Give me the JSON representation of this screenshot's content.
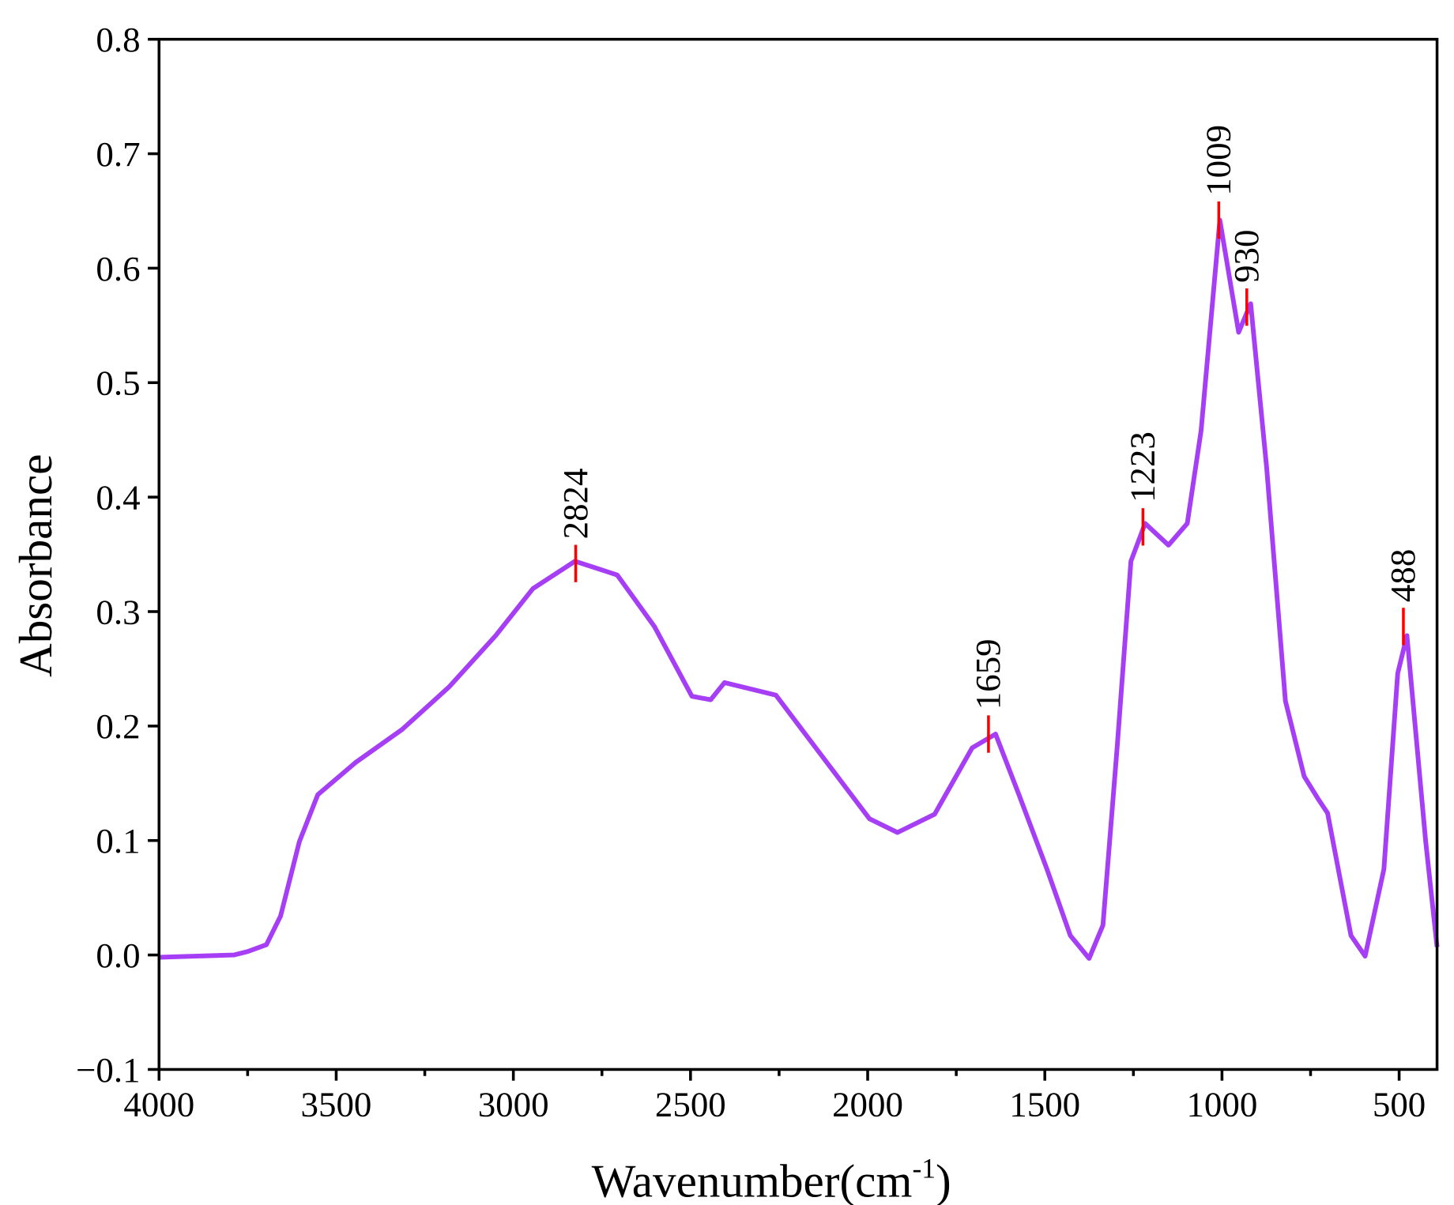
{
  "chart_data": {
    "type": "line",
    "xlabel": [
      "Wavenumber(cm",
      "-1",
      ")"
    ],
    "ylabel": "Absorbance",
    "xlim": [
      4000,
      393
    ],
    "ylim": [
      -0.1,
      0.8
    ],
    "xticks": [
      4000,
      3500,
      3000,
      2500,
      2000,
      1500,
      1000,
      500
    ],
    "x_minor_ticks": [
      3750,
      3250,
      2750,
      2250,
      1750,
      1250,
      750
    ],
    "yticks": [
      {
        "value": -0.1,
        "label": "−0.1"
      },
      {
        "value": 0,
        "label": "0.0"
      },
      0.1,
      0.2,
      0.3,
      0.4,
      0.5,
      0.6,
      0.7,
      0.8
    ],
    "x": [
      4000,
      3789,
      3750,
      3697,
      3657,
      3604,
      3552,
      3446,
      3314,
      3182,
      3050,
      2945,
      2826,
      2707,
      2602,
      2496,
      2443,
      2404,
      2259,
      2127,
      1995,
      1916,
      1811,
      1705,
      1639,
      1573,
      1494,
      1428,
      1375,
      1336,
      1296,
      1257,
      1217,
      1151,
      1098,
      1059,
      1006,
      953,
      919,
      874,
      821,
      768,
      728,
      702,
      636,
      596,
      543,
      504,
      478,
      425,
      393
    ],
    "series": [
      {
        "name": "Absorbance",
        "color": "#a53ef5",
        "values": [
          -0.002,
          0.0,
          0.003,
          0.009,
          0.034,
          0.099,
          0.14,
          0.168,
          0.197,
          0.234,
          0.279,
          0.32,
          0.344,
          0.332,
          0.287,
          0.226,
          0.223,
          0.238,
          0.227,
          0.173,
          0.119,
          0.107,
          0.123,
          0.181,
          0.193,
          0.14,
          0.075,
          0.017,
          -0.003,
          0.026,
          0.181,
          0.344,
          0.377,
          0.358,
          0.377,
          0.458,
          0.642,
          0.544,
          0.569,
          0.426,
          0.222,
          0.156,
          0.136,
          0.124,
          0.017,
          -0.001,
          0.075,
          0.246,
          0.279,
          0.099,
          0.007
        ]
      }
    ],
    "peaks": [
      2824,
      1659,
      1223,
      1009,
      930,
      488
    ],
    "peak_values": [
      0.342,
      0.193,
      0.374,
      0.642,
      0.566,
      0.287
    ],
    "peak_color": "#ff0000",
    "grid": false
  }
}
